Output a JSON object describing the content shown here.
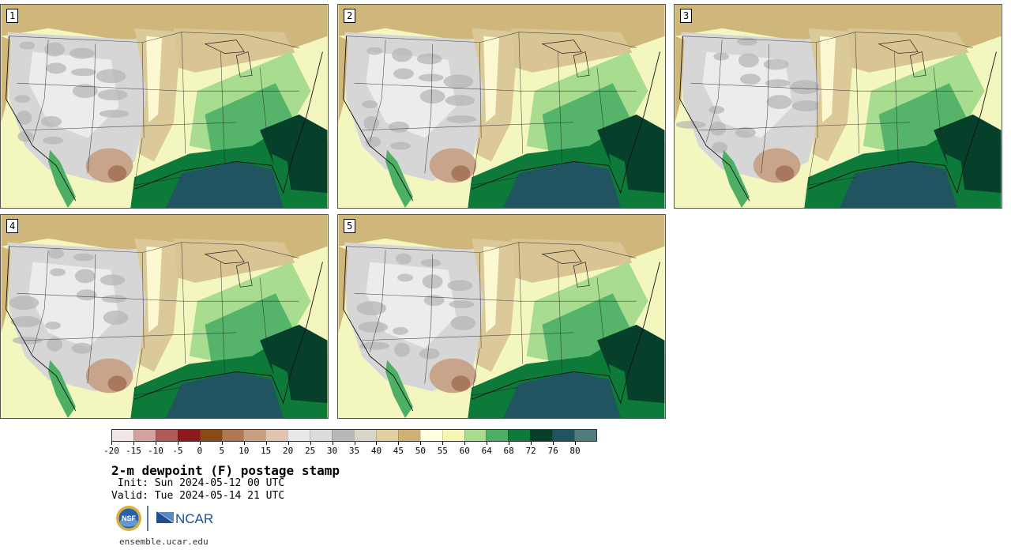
{
  "product": {
    "title": "2-m dewpoint (F) postage stamp",
    "init": " Init: Sun 2024-05-12 00 UTC",
    "valid": "Valid: Tue 2024-05-14 21 UTC",
    "url": "ensemble.ucar.edu"
  },
  "panels": [
    {
      "label": "1"
    },
    {
      "label": "2"
    },
    {
      "label": "3"
    },
    {
      "label": "4"
    },
    {
      "label": "5"
    }
  ],
  "colorbar": {
    "colors": [
      "#f2e6e6",
      "#d4a0a0",
      "#b05a5a",
      "#8c1a1a",
      "#8a4a14",
      "#b07850",
      "#c8a080",
      "#e0c4b0",
      "#e8e8e8",
      "#dcdcdc",
      "#b8b8b8",
      "#d8d4c8",
      "#e2cfa0",
      "#d0b070",
      "#ffffe0",
      "#f6f6b4",
      "#a6dc8c",
      "#4caf64",
      "#0e7a3a",
      "#07402a",
      "#1f5460",
      "#4e7c7c"
    ],
    "tick_labels": [
      "-20",
      "-15",
      "-10",
      "-5",
      "0",
      "5",
      "10",
      "15",
      "20",
      "25",
      "30",
      "35",
      "40",
      "45",
      "50",
      "55",
      "60",
      "64",
      "68",
      "72",
      "76",
      "80"
    ]
  },
  "logos": {
    "nsf_text": "NSF",
    "ncar_text": "NCAR"
  }
}
